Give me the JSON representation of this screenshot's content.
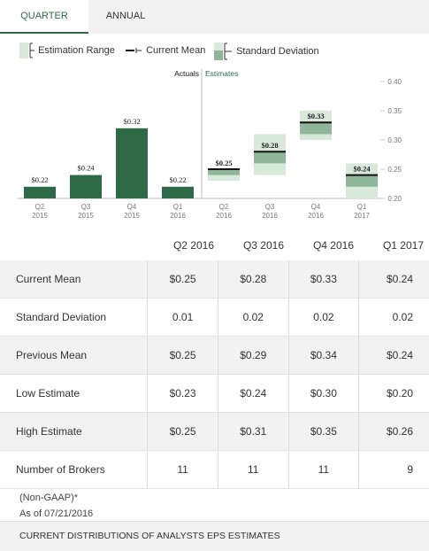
{
  "tabs": {
    "quarter": "QUARTER",
    "annual": "ANNUAL"
  },
  "legend": {
    "range": "Estimation Range",
    "mean": "Current Mean",
    "stddev": "Standard Deviation"
  },
  "colors": {
    "actual_bar": "#2e6a47",
    "estimate_range": "#d8e8da",
    "estimate_stddev": "#8fb59b",
    "accent": "#2e6a47"
  },
  "chart_data": {
    "type": "bar",
    "section_labels": {
      "actuals": "Actuals",
      "estimates": "Estimates"
    },
    "ylim": [
      0.2,
      0.4
    ],
    "yticks": [
      "0.20",
      "0.25",
      "0.30",
      "0.35",
      "0.40"
    ],
    "ytick_values": [
      0.2,
      0.25,
      0.3,
      0.35,
      0.4
    ],
    "axis_side": "right",
    "actuals": [
      {
        "label": "Q2\n2015",
        "value": 0.22,
        "text": "$0.22"
      },
      {
        "label": "Q3\n2015",
        "value": 0.24,
        "text": "$0.24"
      },
      {
        "label": "Q4\n2015",
        "value": 0.32,
        "text": "$0.32"
      },
      {
        "label": "Q1\n2016",
        "value": 0.22,
        "text": "$0.22"
      }
    ],
    "estimates": [
      {
        "label": "Q2\n2016",
        "mean": 0.25,
        "text": "$0.25",
        "low": 0.23,
        "high": 0.25,
        "stddev": 0.01
      },
      {
        "label": "Q3\n2016",
        "mean": 0.28,
        "text": "$0.28",
        "low": 0.24,
        "high": 0.31,
        "stddev": 0.02
      },
      {
        "label": "Q4\n2016",
        "mean": 0.33,
        "text": "$0.33",
        "low": 0.3,
        "high": 0.35,
        "stddev": 0.02
      },
      {
        "label": "Q1\n2017",
        "mean": 0.24,
        "text": "$0.24",
        "low": 0.2,
        "high": 0.26,
        "stddev": 0.02
      }
    ]
  },
  "table": {
    "columns": [
      "Q2 2016",
      "Q3 2016",
      "Q4 2016",
      "Q1 2017"
    ],
    "rows": [
      {
        "label": "Current Mean",
        "values": [
          "$0.25",
          "$0.28",
          "$0.33",
          "$0.24"
        ]
      },
      {
        "label": "Standard Deviation",
        "values": [
          "0.01",
          "0.02",
          "0.02",
          "0.02"
        ]
      },
      {
        "label": "Previous Mean",
        "values": [
          "$0.25",
          "$0.29",
          "$0.34",
          "$0.24"
        ]
      },
      {
        "label": "Low Estimate",
        "values": [
          "$0.23",
          "$0.24",
          "$0.30",
          "$0.20"
        ]
      },
      {
        "label": "High Estimate",
        "values": [
          "$0.25",
          "$0.31",
          "$0.35",
          "$0.26"
        ]
      },
      {
        "label": "Number of Brokers",
        "values": [
          "11",
          "11",
          "11",
          "9"
        ]
      }
    ]
  },
  "footer": {
    "note": "(Non-GAAP)*",
    "as_of": "As of 07/21/2016",
    "section_title": "CURRENT DISTRIBUTIONS OF ANALYSTS EPS ESTIMATES"
  }
}
